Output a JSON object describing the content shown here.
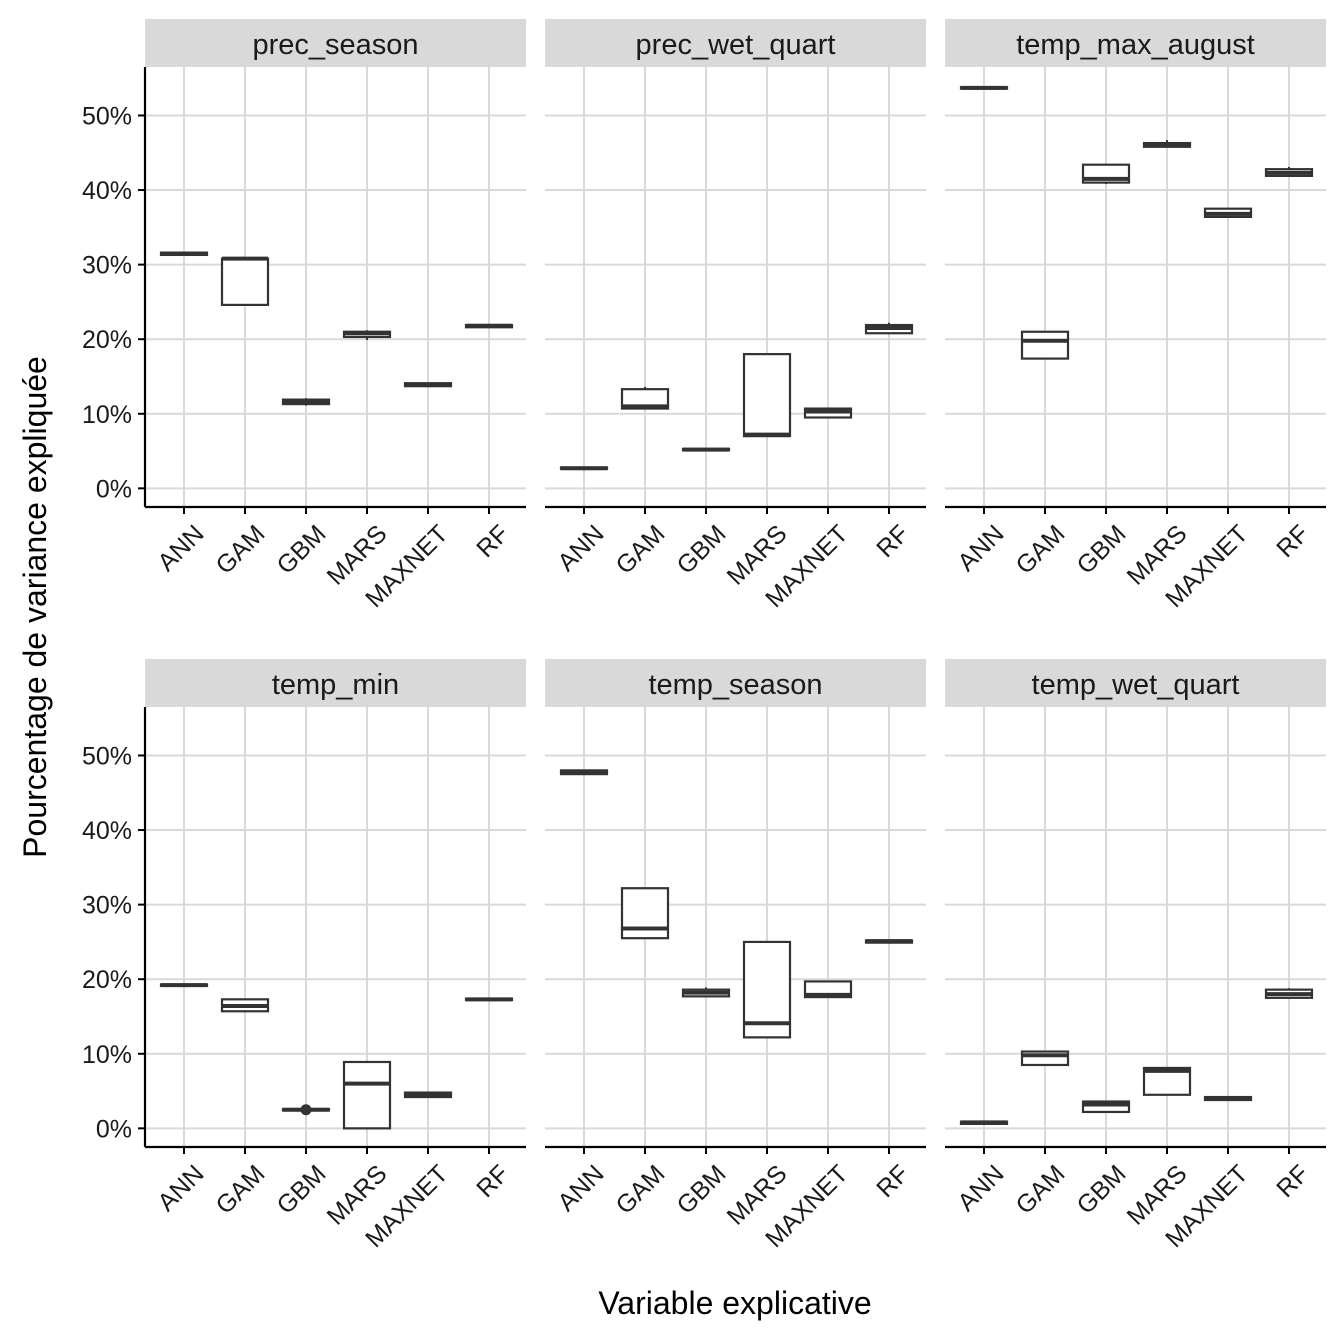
{
  "chart_data": {
    "type": "boxplot",
    "xlabel": "Variable explicative",
    "ylabel": "Pourcentage de variance expliquée",
    "ylim": [
      -2.5,
      56.5
    ],
    "yticks": [
      0,
      10,
      20,
      30,
      40,
      50
    ],
    "ytick_labels": [
      "0%",
      "10%",
      "20%",
      "30%",
      "40%",
      "50%"
    ],
    "categories": [
      "ANN",
      "GAM",
      "GBM",
      "MARS",
      "MAXNET",
      "RF"
    ],
    "colors": {
      "strip": "#d9d9d9",
      "grid": "#d9d9d9",
      "box": "#333333",
      "axis": "#000000"
    },
    "panels": [
      {
        "name": "prec_season",
        "boxes": [
          {
            "min": 31.2,
            "q1": 31.3,
            "median": 31.5,
            "q3": 31.6,
            "max": 31.7
          },
          {
            "min": 24.6,
            "q1": 24.6,
            "median": 30.8,
            "q3": 30.8,
            "max": 30.9
          },
          {
            "min": 11.1,
            "q1": 11.3,
            "median": 11.6,
            "q3": 11.9,
            "max": 12.1
          },
          {
            "min": 19.9,
            "q1": 20.3,
            "median": 20.8,
            "q3": 21.0,
            "max": 21.2
          },
          {
            "min": 13.6,
            "q1": 13.7,
            "median": 13.9,
            "q3": 14.1,
            "max": 14.2
          },
          {
            "min": 21.5,
            "q1": 21.6,
            "median": 21.8,
            "q3": 21.9,
            "max": 22.0
          }
        ]
      },
      {
        "name": "prec_wet_quart",
        "boxes": [
          {
            "min": 2.5,
            "q1": 2.6,
            "median": 2.7,
            "q3": 2.8,
            "max": 2.9
          },
          {
            "min": 10.7,
            "q1": 10.7,
            "median": 11.0,
            "q3": 13.3,
            "max": 13.6
          },
          {
            "min": 5.0,
            "q1": 5.1,
            "median": 5.2,
            "q3": 5.3,
            "max": 5.4
          },
          {
            "min": 7.0,
            "q1": 7.0,
            "median": 7.2,
            "q3": 18.0,
            "max": 18.0
          },
          {
            "min": 9.5,
            "q1": 9.5,
            "median": 10.3,
            "q3": 10.7,
            "max": 10.7
          },
          {
            "min": 20.8,
            "q1": 20.8,
            "median": 21.5,
            "q3": 21.9,
            "max": 22.2
          }
        ]
      },
      {
        "name": "temp_max_august",
        "boxes": [
          {
            "min": 53.5,
            "q1": 53.6,
            "median": 53.7,
            "q3": 53.8,
            "max": 53.9
          },
          {
            "min": 17.3,
            "q1": 17.4,
            "median": 19.8,
            "q3": 21.0,
            "max": 21.1
          },
          {
            "min": 40.8,
            "q1": 41.0,
            "median": 41.5,
            "q3": 43.4,
            "max": 43.5
          },
          {
            "min": 45.7,
            "q1": 45.8,
            "median": 46.1,
            "q3": 46.3,
            "max": 46.7
          },
          {
            "min": 36.4,
            "q1": 36.4,
            "median": 36.8,
            "q3": 37.5,
            "max": 37.6
          },
          {
            "min": 41.9,
            "q1": 41.9,
            "median": 42.3,
            "q3": 42.8,
            "max": 43.1
          }
        ]
      },
      {
        "name": "temp_min",
        "boxes": [
          {
            "min": 19.0,
            "q1": 19.1,
            "median": 19.2,
            "q3": 19.3,
            "max": 19.4
          },
          {
            "min": 15.7,
            "q1": 15.7,
            "median": 16.4,
            "q3": 17.3,
            "max": 17.3
          },
          {
            "min": 2.3,
            "q1": 2.4,
            "median": 2.5,
            "q3": 2.6,
            "max": 2.7,
            "outliers": [
              2.5
            ]
          },
          {
            "min": 0.0,
            "q1": 0.0,
            "median": 6.0,
            "q3": 8.9,
            "max": 8.9
          },
          {
            "min": 4.1,
            "q1": 4.2,
            "median": 4.5,
            "q3": 4.8,
            "max": 4.9
          },
          {
            "min": 17.1,
            "q1": 17.2,
            "median": 17.3,
            "q3": 17.4,
            "max": 17.5
          }
        ]
      },
      {
        "name": "temp_season",
        "boxes": [
          {
            "min": 47.4,
            "q1": 47.5,
            "median": 47.8,
            "q3": 48.0,
            "max": 48.1
          },
          {
            "min": 25.5,
            "q1": 25.5,
            "median": 26.8,
            "q3": 32.2,
            "max": 32.2
          },
          {
            "min": 17.7,
            "q1": 17.7,
            "median": 18.2,
            "q3": 18.6,
            "max": 18.9
          },
          {
            "min": 12.2,
            "q1": 12.2,
            "median": 14.1,
            "q3": 25.0,
            "max": 25.0
          },
          {
            "min": 17.6,
            "q1": 17.6,
            "median": 17.9,
            "q3": 19.7,
            "max": 19.7
          },
          {
            "min": 24.8,
            "q1": 24.9,
            "median": 25.1,
            "q3": 25.2,
            "max": 25.3
          }
        ]
      },
      {
        "name": "temp_wet_quart",
        "boxes": [
          {
            "min": 0.5,
            "q1": 0.6,
            "median": 0.8,
            "q3": 0.9,
            "max": 1.0
          },
          {
            "min": 8.5,
            "q1": 8.5,
            "median": 9.8,
            "q3": 10.3,
            "max": 10.3
          },
          {
            "min": 2.2,
            "q1": 2.2,
            "median": 3.2,
            "q3": 3.6,
            "max": 3.6
          },
          {
            "min": 4.5,
            "q1": 4.5,
            "median": 7.7,
            "q3": 8.1,
            "max": 8.1
          },
          {
            "min": 3.7,
            "q1": 3.8,
            "median": 4.0,
            "q3": 4.2,
            "max": 4.2
          },
          {
            "min": 17.4,
            "q1": 17.5,
            "median": 18.0,
            "q3": 18.6,
            "max": 18.8
          }
        ]
      }
    ]
  }
}
